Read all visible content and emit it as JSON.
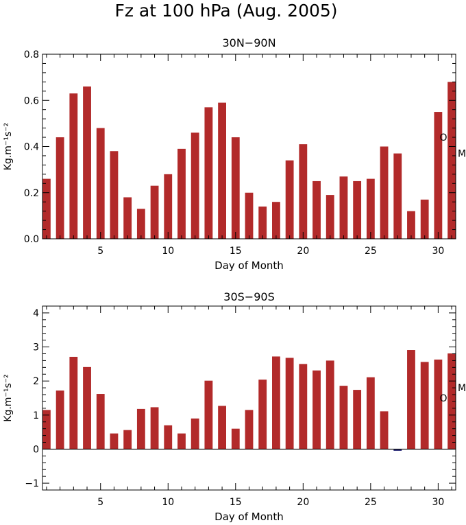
{
  "figure": {
    "title": "Fz at 100 hPa (Aug. 2005)"
  },
  "chart_data": [
    {
      "type": "bar",
      "title": "30N−90N",
      "xlabel": "Day of Month",
      "ylabel": "Kg.m⁻¹s⁻²",
      "xlim": [
        0.7,
        31.3
      ],
      "ylim": [
        0,
        0.8
      ],
      "xticks": [
        5,
        10,
        15,
        20,
        25,
        30
      ],
      "yticks": [
        0.0,
        0.2,
        0.4,
        0.6,
        0.8
      ],
      "yticklabels": [
        "0.0",
        "0.2",
        "0.4",
        "0.6",
        "0.8"
      ],
      "x": [
        1,
        2,
        3,
        4,
        5,
        6,
        7,
        8,
        9,
        10,
        11,
        12,
        13,
        14,
        15,
        16,
        17,
        18,
        19,
        20,
        21,
        22,
        23,
        24,
        25,
        26,
        27,
        28,
        29,
        30,
        31
      ],
      "values": [
        0.26,
        0.44,
        0.63,
        0.66,
        0.48,
        0.38,
        0.18,
        0.13,
        0.23,
        0.28,
        0.39,
        0.46,
        0.57,
        0.59,
        0.44,
        0.2,
        0.14,
        0.16,
        0.34,
        0.41,
        0.25,
        0.19,
        0.27,
        0.25,
        0.26,
        0.4,
        0.37,
        0.12,
        0.17,
        0.55,
        0.68
      ],
      "bar_color": "#b22a2a",
      "negative_color": "#2b2d7a",
      "markers": [
        {
          "label": "O",
          "value": 0.44
        },
        {
          "label": "M",
          "value": 0.37
        }
      ]
    },
    {
      "type": "bar",
      "title": "30S−90S",
      "xlabel": "Day of Month",
      "ylabel": "Kg.m⁻¹s⁻²",
      "xlim": [
        0.7,
        31.3
      ],
      "ylim": [
        -1.2,
        4.2
      ],
      "xticks": [
        5,
        10,
        15,
        20,
        25,
        30
      ],
      "yticks": [
        -1,
        0,
        1,
        2,
        3,
        4
      ],
      "yticklabels": [
        "−1",
        "0",
        "1",
        "2",
        "3",
        "4"
      ],
      "zero_line": true,
      "x": [
        1,
        2,
        3,
        4,
        5,
        6,
        7,
        8,
        9,
        10,
        11,
        12,
        13,
        14,
        15,
        16,
        17,
        18,
        19,
        20,
        21,
        22,
        23,
        24,
        25,
        26,
        27,
        28,
        29,
        30,
        31
      ],
      "values": [
        1.15,
        1.72,
        2.71,
        2.41,
        1.62,
        0.46,
        0.56,
        1.18,
        1.23,
        0.7,
        0.46,
        0.9,
        2.01,
        1.27,
        0.6,
        1.15,
        2.04,
        2.72,
        2.68,
        2.5,
        2.31,
        2.6,
        1.86,
        1.74,
        2.11,
        1.11,
        -0.05,
        2.91,
        2.56,
        2.63,
        2.81
      ],
      "bar_color": "#b22a2a",
      "negative_color": "#2b2d7a",
      "markers": [
        {
          "label": "O",
          "value": 1.5
        },
        {
          "label": "M",
          "value": 1.8
        }
      ]
    }
  ]
}
